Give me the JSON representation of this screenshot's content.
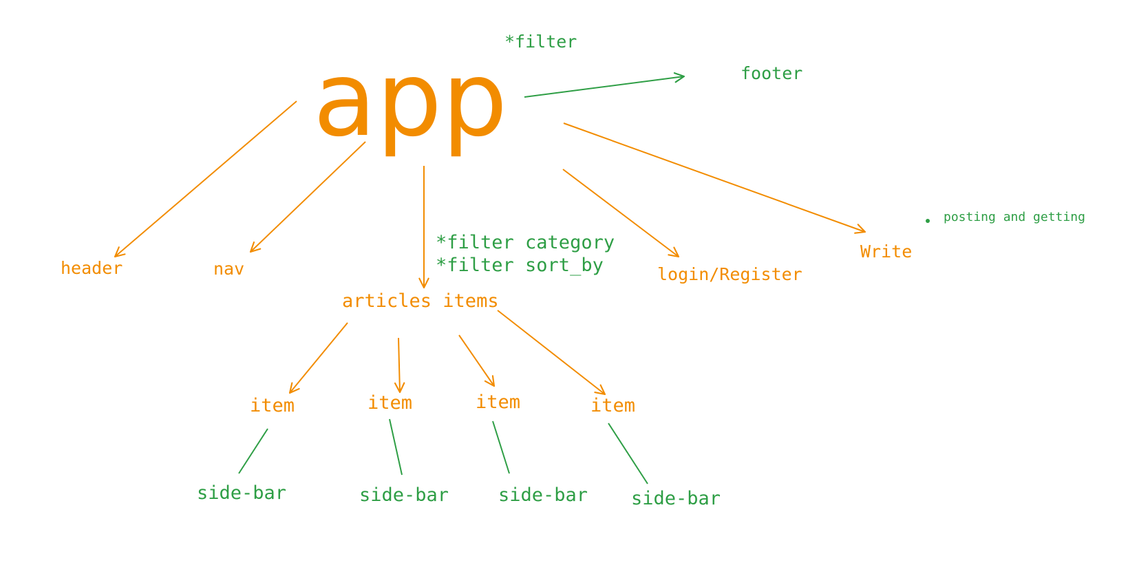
{
  "colors": {
    "structure": "#f28c00",
    "annotation": "#2e9e45",
    "background": "#ffffff"
  },
  "root": "app",
  "nodes": {
    "footer": "footer",
    "header": "header",
    "nav": "nav",
    "articles": "articles items",
    "login": "login/Register",
    "write": "Write",
    "items": [
      "item",
      "item",
      "item",
      "item"
    ],
    "sidebars": [
      "side-bar",
      "side-bar",
      "side-bar",
      "side-bar"
    ]
  },
  "notes": {
    "app_filter": "*filter",
    "articles_filters": [
      "*filter category",
      "*filter sort_by"
    ],
    "write_note": "posting and getting"
  }
}
